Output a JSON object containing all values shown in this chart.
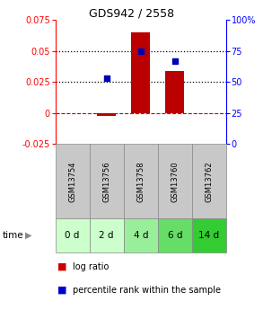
{
  "title": "GDS942 / 2558",
  "categories": [
    "GSM13754",
    "GSM13756",
    "GSM13758",
    "GSM13760",
    "GSM13762"
  ],
  "time_labels": [
    "0 d",
    "2 d",
    "4 d",
    "6 d",
    "14 d"
  ],
  "log_ratio": [
    0.0,
    -0.002,
    0.065,
    0.034,
    0.0
  ],
  "percentile_rank": [
    null,
    0.028,
    0.05,
    0.042,
    null
  ],
  "ylim_left": [
    -0.025,
    0.075
  ],
  "ylim_right": [
    0,
    100
  ],
  "yticks_left": [
    -0.025,
    0.0,
    0.025,
    0.05,
    0.075
  ],
  "yticks_right": [
    0,
    25,
    50,
    75,
    100
  ],
  "ytick_labels_left": [
    "-0.025",
    "0",
    "0.025",
    "0.05",
    "0.075"
  ],
  "ytick_labels_right": [
    "0",
    "25",
    "50",
    "75",
    "100%"
  ],
  "bar_color": "#bb0000",
  "dot_color": "#0000bb",
  "zero_line_color": "#cc0000",
  "dotted_line_color": "#000000",
  "gsm_bg_color": "#c8c8c8",
  "gsm_border_color": "#888888",
  "time_bg_colors": [
    "#ccffcc",
    "#ccffcc",
    "#99ee99",
    "#66dd66",
    "#33cc33"
  ],
  "legend_bar_color": "#cc0000",
  "legend_dot_color": "#0000cc",
  "background_color": "#ffffff",
  "bar_width": 0.55,
  "dotted_line_levels": [
    0.025,
    0.05
  ],
  "title_fontsize": 9,
  "tick_fontsize": 7,
  "gsm_fontsize": 6,
  "time_fontsize": 7.5,
  "legend_fontsize": 7
}
